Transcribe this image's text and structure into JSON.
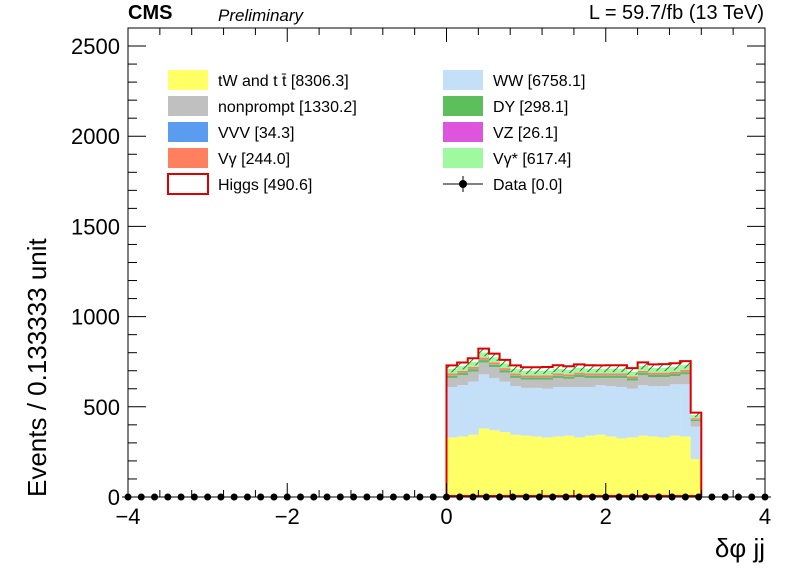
{
  "header": {
    "experiment": "CMS",
    "status": "Preliminary",
    "luminosity": "L = 59.7/fb (13 TeV)"
  },
  "colors": {
    "tW and tt": "#ffff66",
    "nonprompt": "#c0c0c0",
    "VVV": "#5a9cf0",
    "Vgamma": "#ff7f5f",
    "WW": "#c4dff8",
    "DY": "#5cbf5c",
    "VZ": "#dd55dd",
    "Vgammastar": "#9ff99f",
    "higgs_line": "#e00000",
    "uncertainty_hatch": "#2e7d2e"
  },
  "chart_data": {
    "type": "bar",
    "stacked": true,
    "xlabel": "δφ jj",
    "ylabel": "Events / 0.133333 unit",
    "xlim": [
      -4,
      4
    ],
    "ylim": [
      0,
      2600
    ],
    "x_ticks": [
      "−4",
      "−2",
      "0",
      "2",
      "4"
    ],
    "y_ticks": [
      "0",
      "500",
      "1000",
      "1500",
      "2000",
      "2500"
    ],
    "bin_width": 0.133333,
    "x_bin_lo": [
      0.0,
      0.133333,
      0.266667,
      0.4,
      0.533333,
      0.666667,
      0.8,
      0.933333,
      1.066667,
      1.2,
      1.333333,
      1.466667,
      1.6,
      1.733333,
      1.866667,
      2.0,
      2.133333,
      2.266667,
      2.4,
      2.533333,
      2.666667,
      2.8,
      2.933333,
      3.066667
    ],
    "series": [
      {
        "name": "tW and tt",
        "legend": "tW and t t̄ [8306.3]",
        "color": "#ffff66",
        "values": [
          330,
          335,
          345,
          380,
          370,
          360,
          345,
          340,
          335,
          330,
          335,
          340,
          330,
          340,
          345,
          335,
          325,
          330,
          340,
          335,
          330,
          340,
          335,
          210
        ]
      },
      {
        "name": "WW",
        "legend": "WW [6758.1]",
        "color": "#c4dff8",
        "values": [
          280,
          285,
          295,
          300,
          290,
          280,
          270,
          265,
          270,
          270,
          275,
          270,
          280,
          270,
          275,
          280,
          285,
          270,
          280,
          280,
          285,
          285,
          290,
          180
        ]
      },
      {
        "name": "nonprompt",
        "legend": "nonprompt [1330.2]",
        "color": "#c0c0c0",
        "values": [
          50,
          55,
          55,
          65,
          60,
          50,
          45,
          45,
          45,
          50,
          50,
          45,
          55,
          50,
          40,
          45,
          50,
          45,
          55,
          50,
          50,
          45,
          55,
          30
        ]
      },
      {
        "name": "DY",
        "legend": "DY [298.1]",
        "color": "#5cbf5c",
        "values": [
          12,
          12,
          13,
          14,
          13,
          12,
          12,
          12,
          12,
          12,
          12,
          12,
          12,
          12,
          12,
          12,
          12,
          12,
          12,
          12,
          12,
          12,
          12,
          8
        ]
      },
      {
        "name": "VVV",
        "legend": "VVV [34.3]",
        "color": "#5a9cf0",
        "values": [
          1.4,
          1.4,
          1.4,
          1.5,
          1.5,
          1.4,
          1.4,
          1.4,
          1.4,
          1.4,
          1.4,
          1.4,
          1.4,
          1.4,
          1.4,
          1.4,
          1.4,
          1.4,
          1.4,
          1.4,
          1.4,
          1.4,
          1.4,
          1.0
        ]
      },
      {
        "name": "VZ",
        "legend": "VZ [26.1]",
        "color": "#dd55dd",
        "values": [
          1.1,
          1.1,
          1.1,
          1.2,
          1.2,
          1.1,
          1.1,
          1.1,
          1.1,
          1.1,
          1.1,
          1.1,
          1.1,
          1.1,
          1.1,
          1.1,
          1.1,
          1.1,
          1.1,
          1.1,
          1.1,
          1.1,
          1.1,
          0.8
        ]
      },
      {
        "name": "Vgamma",
        "legend": "Vγ [244.0]",
        "color": "#ff7f5f",
        "values": [
          10,
          10,
          11,
          11,
          11,
          10,
          10,
          10,
          10,
          10,
          10,
          10,
          10,
          10,
          10,
          10,
          10,
          10,
          10,
          10,
          10,
          10,
          10,
          7
        ]
      },
      {
        "name": "Vgammastar",
        "legend": "Vγ* [617.4]",
        "color": "#9ff99f",
        "values": [
          25,
          26,
          27,
          28,
          27,
          26,
          25,
          25,
          25,
          26,
          26,
          25,
          26,
          26,
          25,
          26,
          26,
          25,
          27,
          26,
          26,
          26,
          27,
          17
        ]
      }
    ],
    "higgs": {
      "name": "Higgs",
      "legend": "Higgs [490.6]",
      "color": "#e00000",
      "values": [
        20,
        20,
        21,
        22,
        21,
        20,
        20,
        20,
        20,
        20,
        20,
        20,
        20,
        20,
        20,
        20,
        20,
        20,
        20,
        20,
        21,
        21,
        22,
        14
      ]
    },
    "data": {
      "name": "Data",
      "legend": "Data [0.0]",
      "x_points": 49,
      "values_all": 0
    },
    "legend_order": [
      [
        "tW and t t̄ [8306.3]",
        "WW [6758.1]"
      ],
      [
        "nonprompt [1330.2]",
        "DY [298.1]"
      ],
      [
        "VVV [34.3]",
        "VZ [26.1]"
      ],
      [
        "Vγ [244.0]",
        "Vγ* [617.4]"
      ],
      [
        "Higgs [490.6]",
        "Data [0.0]"
      ]
    ],
    "legend_placement": "top",
    "grid": false
  }
}
